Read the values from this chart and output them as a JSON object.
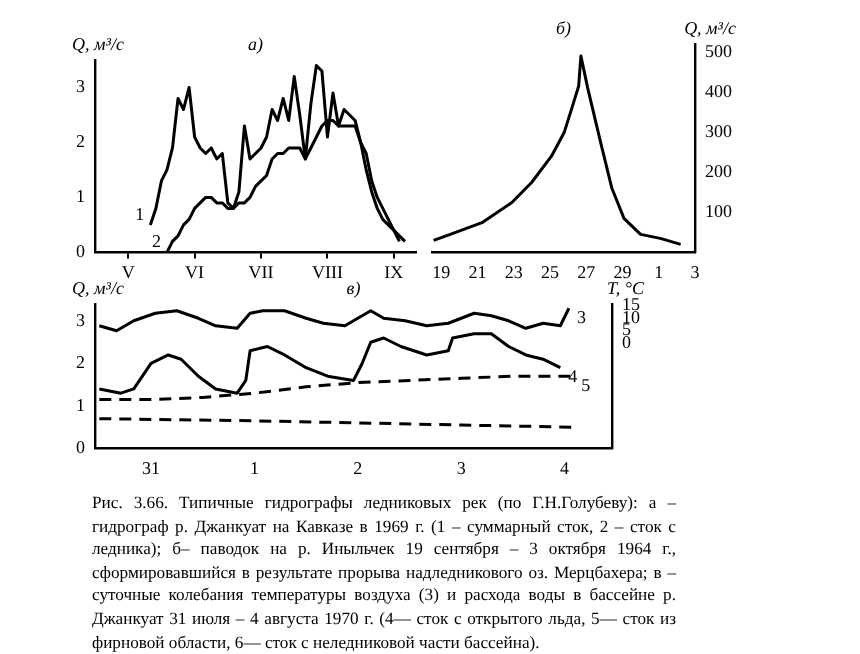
{
  "chart_data": [
    {
      "type": "line",
      "title": "а)",
      "ylabel": "Q, м³/с",
      "categories": [
        null,
        null,
        null,
        null,
        null,
        null,
        "V",
        null,
        null,
        null,
        null,
        null,
        null,
        null,
        null,
        null,
        null,
        null,
        "VI",
        null,
        null,
        null,
        null,
        null,
        null,
        null,
        null,
        null,
        null,
        null,
        "VII",
        null,
        null,
        null,
        null,
        null,
        null,
        null,
        null,
        null,
        null,
        null,
        "VIII",
        null,
        null,
        null,
        null,
        null,
        null,
        null,
        null,
        null,
        null,
        null,
        "IX",
        null,
        null,
        null,
        null
      ],
      "ylim": [
        0,
        3.5
      ],
      "yticks": [
        0,
        1,
        2,
        3
      ],
      "series": [
        {
          "name": "1",
          "color": "#000000",
          "values": [
            null,
            null,
            null,
            null,
            null,
            null,
            null,
            null,
            null,
            null,
            0.5,
            0.8,
            1.3,
            1.5,
            1.9,
            2.8,
            2.6,
            3.0,
            2.1,
            1.9,
            1.8,
            1.9,
            1.7,
            1.8,
            0.9,
            0.8,
            1.1,
            2.3,
            1.7,
            1.8,
            1.9,
            2.1,
            2.6,
            2.4,
            2.8,
            2.4,
            3.2,
            2.5,
            1.7,
            2.7,
            3.4,
            3.3,
            2.1,
            2.9,
            2.3,
            2.6,
            2.5,
            2.4,
            2.0,
            1.5,
            1.1,
            0.8,
            0.6,
            0.5,
            0.4,
            0.2,
            null,
            null,
            null
          ]
        },
        {
          "name": "2",
          "color": "#000000",
          "values": [
            null,
            null,
            null,
            null,
            null,
            null,
            null,
            null,
            null,
            null,
            null,
            null,
            null,
            0.0,
            0.2,
            0.3,
            0.5,
            0.6,
            0.8,
            0.9,
            1.0,
            1.0,
            0.9,
            0.9,
            0.8,
            0.8,
            0.9,
            0.9,
            1.0,
            1.2,
            1.3,
            1.4,
            1.7,
            1.8,
            1.8,
            1.9,
            1.9,
            1.9,
            1.7,
            1.9,
            2.1,
            2.3,
            2.4,
            2.4,
            2.3,
            2.3,
            2.3,
            2.3,
            2.0,
            1.8,
            1.3,
            1.0,
            0.8,
            0.6,
            0.4,
            0.3,
            0.2,
            null,
            null
          ]
        }
      ]
    },
    {
      "type": "line",
      "title": "б)",
      "y2label": "Q, м³/с",
      "xlim": [
        "1964-09-18T12:00",
        "1964-10-03"
      ],
      "xticks": [
        {
          "value": "1964-09-19",
          "label": "19"
        },
        {
          "value": "1964-09-21",
          "label": "21"
        },
        {
          "value": "1964-09-23",
          "label": "23"
        },
        {
          "value": "1964-09-25",
          "label": "25"
        },
        {
          "value": "1964-09-27",
          "label": "27"
        },
        {
          "value": "1964-09-29",
          "label": "29"
        },
        {
          "value": "1964-10-01",
          "label": "1"
        },
        {
          "value": "1964-10-03",
          "label": "3"
        }
      ],
      "y2lim": [
        0,
        520
      ],
      "y2ticks": [
        100,
        200,
        300,
        400,
        500
      ],
      "series": [
        {
          "color": "#000000",
          "axis": "y2",
          "x": [
            "1964-09-18T14:00",
            "1964-09-19T12:00",
            "1964-09-21T07:00",
            "1964-09-22T22:00",
            "1964-09-24T00:00",
            "1964-09-25T02:00",
            "1964-09-25T19:00",
            "1964-09-26T05:00",
            "1964-09-26T14:00",
            "1964-09-26T17:00",
            "1964-09-27T02:00",
            "1964-09-27T19:00",
            "1964-09-28T10:00",
            "1964-09-29T02:00",
            "1964-09-30T00:00",
            "1964-10-01T02:00",
            "1964-10-02T05:00"
          ],
          "values": [
            30,
            45,
            75,
            125,
            175,
            240,
            300,
            360,
            415,
            490,
            410,
            275,
            160,
            85,
            45,
            35,
            20
          ]
        }
      ]
    },
    {
      "type": "line",
      "title": "в)",
      "ylabel": "Q, м³/с",
      "y2label": "T, °C",
      "xlim": [
        "1970-07-30T11:00",
        "1970-08-04T11:00"
      ],
      "xticks": [
        {
          "value": "1970-07-31",
          "label": "31"
        },
        {
          "value": "1970-08-01",
          "label": "1"
        },
        {
          "value": "1970-08-02",
          "label": "2"
        },
        {
          "value": "1970-08-03",
          "label": "3"
        },
        {
          "value": "1970-08-04",
          "label": "4"
        }
      ],
      "ylim": [
        0,
        3.4
      ],
      "yticks": [
        0,
        1,
        2,
        3
      ],
      "y2lim": [
        -42,
        15.7
      ],
      "y2ticks": [
        0,
        5,
        10,
        15
      ],
      "series": [
        {
          "name": "3",
          "color": "#000000",
          "axis": "y2",
          "x": [
            "1970-07-30T12:00",
            "1970-07-30T16:00",
            "1970-07-30T20:00",
            "1970-07-31T01:00",
            "1970-07-31T06:00",
            "1970-07-31T11:00",
            "1970-07-31T15:00",
            "1970-07-31T20:00",
            "1970-07-31T23:00",
            "1970-08-01T02:00",
            "1970-08-01T07:00",
            "1970-08-01T12:00",
            "1970-08-01T16:00",
            "1970-08-01T21:00",
            "1970-08-02T01:00",
            "1970-08-02T03:00",
            "1970-08-02T06:00",
            "1970-08-02T11:00",
            "1970-08-02T16:00",
            "1970-08-02T21:00",
            "1970-08-03T03:00",
            "1970-08-03T07:00",
            "1970-08-03T11:00",
            "1970-08-03T15:00",
            "1970-08-03T19:00",
            "1970-08-03T23:00",
            "1970-08-04T01:00"
          ],
          "values": [
            7,
            5,
            9,
            12,
            13,
            10,
            7,
            6,
            12,
            13,
            13,
            10,
            8,
            7,
            11,
            13,
            10,
            9,
            7,
            8,
            12,
            11,
            9,
            6,
            8,
            7,
            14
          ]
        },
        {
          "name": "4",
          "color": "#000000",
          "x": [
            "1970-07-30T12:00",
            "1970-07-30T17:00",
            "1970-07-30T20:00",
            "1970-07-31T00:00",
            "1970-07-31T04:00",
            "1970-07-31T07:00",
            "1970-07-31T11:00",
            "1970-07-31T15:00",
            "1970-07-31T20:00",
            "1970-07-31T22:00",
            "1970-07-31T23:00",
            "1970-08-01T03:00",
            "1970-08-01T07:00",
            "1970-08-01T12:00",
            "1970-08-01T17:00",
            "1970-08-01T23:00",
            "1970-08-02T01:00",
            "1970-08-02T03:00",
            "1970-08-02T06:00",
            "1970-08-02T10:00",
            "1970-08-02T16:00",
            "1970-08-02T21:00",
            "1970-08-02T22:00",
            "1970-08-03T03:00",
            "1970-08-03T07:00",
            "1970-08-03T11:00",
            "1970-08-03T15:00",
            "1970-08-03T19:00",
            "1970-08-03T23:00"
          ],
          "values": [
            1.4,
            1.3,
            1.4,
            2.0,
            2.2,
            2.1,
            1.7,
            1.4,
            1.3,
            1.6,
            2.3,
            2.4,
            2.2,
            1.9,
            1.7,
            1.6,
            2.0,
            2.5,
            2.6,
            2.4,
            2.2,
            2.3,
            2.6,
            2.7,
            2.7,
            2.4,
            2.2,
            2.1,
            1.9
          ]
        },
        {
          "name": "5",
          "color": "#000000",
          "line_style": "dashed",
          "x": [
            "1970-07-30T12:00",
            "1970-07-31T00:00",
            "1970-07-31T12:00",
            "1970-08-01T00:00",
            "1970-08-01T12:00",
            "1970-08-02T00:00",
            "1970-08-02T12:00",
            "1970-08-03T00:00",
            "1970-08-03T12:00",
            "1970-08-04T02:00"
          ],
          "values": [
            1.15,
            1.15,
            1.2,
            1.3,
            1.45,
            1.55,
            1.6,
            1.65,
            1.7,
            1.7
          ]
        },
        {
          "color": "#000000",
          "line_style": "dashed",
          "x": [
            "1970-07-30T12:00",
            "1970-08-01T00:00",
            "1970-08-02T00:00",
            "1970-08-03T00:00",
            "1970-08-04T02:00"
          ],
          "values": [
            0.7,
            0.65,
            0.6,
            0.55,
            0.5
          ]
        }
      ],
      "annotations": [
        "Рис. 3.66. Типичные гидрографы ледниковых рек (по Г.Н.Голубеву): а – гидрограф р. Джанкуат на Кавказе в 1969 г. (1 – суммарный сток, 2 – сток с ледника); б– паводок на р. Иныльчек 19 сентября – 3 октября 1964 г., сформировавшийся в результате прорыва надледникового оз. Мерцбахера; в – суточные колебания температуры воздуха (3) и расхода воды в бассейне р. Джанкуат 31 июля – 4 августа 1970 г. (4— сток с открытого льда, 5— сток из фирновой области, 6— сток с неледниковой части бассейна)."
      ]
    }
  ]
}
